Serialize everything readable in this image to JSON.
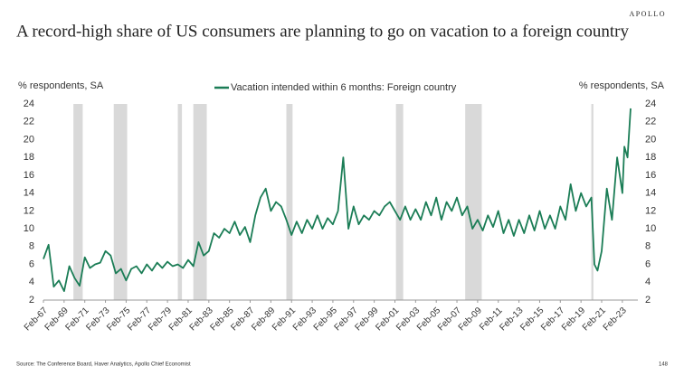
{
  "brand": "APOLLO",
  "page_number": "148",
  "chart_data": {
    "type": "line",
    "title": "A record-high share of US consumers are planning to go on vacation to a foreign country",
    "y_label": "% respondents, SA",
    "y2_label": "% respondents, SA",
    "source": "Source: The Conference Board, Haver Analytics, Apollo Chief Economist",
    "x": [
      1967.1,
      1967.6,
      1968.1,
      1968.6,
      1969.1,
      1969.6,
      1970.1,
      1970.6,
      1971.1,
      1971.6,
      1972.1,
      1972.6,
      1973.1,
      1973.6,
      1974.1,
      1974.6,
      1975.1,
      1975.6,
      1976.1,
      1976.6,
      1977.1,
      1977.6,
      1978.1,
      1978.6,
      1979.1,
      1979.6,
      1980.1,
      1980.6,
      1981.1,
      1981.6,
      1982.1,
      1982.6,
      1983.1,
      1983.6,
      1984.1,
      1984.6,
      1985.1,
      1985.6,
      1986.1,
      1986.6,
      1987.1,
      1987.6,
      1988.1,
      1988.6,
      1989.1,
      1989.6,
      1990.1,
      1990.6,
      1991.1,
      1991.6,
      1992.1,
      1992.6,
      1993.1,
      1993.6,
      1994.1,
      1994.6,
      1995.1,
      1995.6,
      1996.1,
      1996.6,
      1997.1,
      1997.6,
      1998.1,
      1998.6,
      1999.1,
      1999.6,
      2000.1,
      2000.6,
      2001.1,
      2001.6,
      2002.1,
      2002.6,
      2003.1,
      2003.6,
      2004.1,
      2004.6,
      2005.1,
      2005.6,
      2006.1,
      2006.6,
      2007.1,
      2007.6,
      2008.1,
      2008.6,
      2009.1,
      2009.6,
      2010.1,
      2010.6,
      2011.1,
      2011.6,
      2012.1,
      2012.6,
      2013.1,
      2013.6,
      2014.1,
      2014.6,
      2015.1,
      2015.6,
      2016.1,
      2016.6,
      2017.1,
      2017.6,
      2018.1,
      2018.6,
      2019.1,
      2019.6,
      2020.1,
      2020.4,
      2020.7,
      2021.1,
      2021.6,
      2022.1,
      2022.6,
      2023.1,
      2023.3,
      2023.6,
      2023.9
    ],
    "series": [
      {
        "name": "Vacation intended within 6 months: Foreign country",
        "color": "#1b7d56",
        "values": [
          6.6,
          8.2,
          3.5,
          4.2,
          3.0,
          5.8,
          4.5,
          3.6,
          6.8,
          5.6,
          6.0,
          6.2,
          7.5,
          7.0,
          5.0,
          5.5,
          4.2,
          5.5,
          5.8,
          5.0,
          6.0,
          5.3,
          6.2,
          5.6,
          6.3,
          5.8,
          6.0,
          5.6,
          6.5,
          5.8,
          8.5,
          7.0,
          7.5,
          9.5,
          9.0,
          10.0,
          9.5,
          10.8,
          9.3,
          10.2,
          8.5,
          11.5,
          13.5,
          14.5,
          12.0,
          13.0,
          12.5,
          11.0,
          9.3,
          10.8,
          9.5,
          11.0,
          10.0,
          11.5,
          10.0,
          11.2,
          10.5,
          12.0,
          18.0,
          10.0,
          12.5,
          10.5,
          11.5,
          11.0,
          12.0,
          11.5,
          12.5,
          13.0,
          12.0,
          11.0,
          12.5,
          11.0,
          12.2,
          11.0,
          13.0,
          11.5,
          13.5,
          11.0,
          13.0,
          12.0,
          13.5,
          11.5,
          12.5,
          10.0,
          11.0,
          9.8,
          11.5,
          10.2,
          12.0,
          9.5,
          11.0,
          9.2,
          11.0,
          9.5,
          11.5,
          9.8,
          12.0,
          10.0,
          11.5,
          10.0,
          12.5,
          11.0,
          15.0,
          12.0,
          14.0,
          12.5,
          13.5,
          6.0,
          5.3,
          7.5,
          14.5,
          11.0,
          18.0,
          14.0,
          19.2,
          18.0,
          23.5
        ]
      }
    ],
    "recessions": [
      [
        1970.0,
        1970.9
      ],
      [
        1973.9,
        1975.2
      ],
      [
        1980.1,
        1980.5
      ],
      [
        1981.6,
        1982.9
      ],
      [
        1990.6,
        1991.2
      ],
      [
        2001.2,
        2001.9
      ],
      [
        2007.9,
        2009.5
      ],
      [
        2020.1,
        2020.3
      ]
    ],
    "recession_color": "#d9d9d9",
    "xlim": [
      1967.1,
      2024.6
    ],
    "xticks": [
      {
        "value": 1967.1,
        "label": "Feb-67"
      },
      {
        "value": 1969.1,
        "label": "Feb-69"
      },
      {
        "value": 1971.1,
        "label": "Feb-71"
      },
      {
        "value": 1973.1,
        "label": "Feb-73"
      },
      {
        "value": 1975.1,
        "label": "Feb-75"
      },
      {
        "value": 1977.1,
        "label": "Feb-77"
      },
      {
        "value": 1979.1,
        "label": "Feb-79"
      },
      {
        "value": 1981.1,
        "label": "Feb-81"
      },
      {
        "value": 1983.1,
        "label": "Feb-83"
      },
      {
        "value": 1985.1,
        "label": "Feb-85"
      },
      {
        "value": 1987.1,
        "label": "Feb-87"
      },
      {
        "value": 1989.1,
        "label": "Feb-89"
      },
      {
        "value": 1991.1,
        "label": "Feb-91"
      },
      {
        "value": 1993.1,
        "label": "Feb-93"
      },
      {
        "value": 1995.1,
        "label": "Feb-95"
      },
      {
        "value": 1997.1,
        "label": "Feb-97"
      },
      {
        "value": 1999.1,
        "label": "Feb-99"
      },
      {
        "value": 2001.1,
        "label": "Feb-01"
      },
      {
        "value": 2003.1,
        "label": "Feb-03"
      },
      {
        "value": 2005.1,
        "label": "Feb-05"
      },
      {
        "value": 2007.1,
        "label": "Feb-07"
      },
      {
        "value": 2009.1,
        "label": "Feb-09"
      },
      {
        "value": 2011.1,
        "label": "Feb-11"
      },
      {
        "value": 2013.1,
        "label": "Feb-13"
      },
      {
        "value": 2015.1,
        "label": "Feb-15"
      },
      {
        "value": 2017.1,
        "label": "Feb-17"
      },
      {
        "value": 2019.1,
        "label": "Feb-19"
      },
      {
        "value": 2021.1,
        "label": "Feb-21"
      },
      {
        "value": 2023.1,
        "label": "Feb-23"
      }
    ],
    "ylim": [
      2,
      24
    ],
    "yticks": [
      2,
      4,
      6,
      8,
      10,
      12,
      14,
      16,
      18,
      20,
      22,
      24
    ],
    "y2lim": [
      2,
      24
    ],
    "y2ticks": [
      2,
      4,
      6,
      8,
      10,
      12,
      14,
      16,
      18,
      20,
      22,
      24
    ],
    "grid": false,
    "legend": "top"
  }
}
